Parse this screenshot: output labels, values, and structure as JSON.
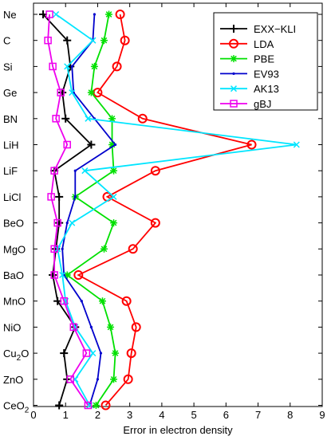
{
  "chart_data": {
    "type": "line",
    "orientation": "horizontal",
    "xlabel": "Error in electron density",
    "ylabel": "",
    "xlim": [
      0,
      9
    ],
    "xticks": [
      0,
      1,
      2,
      3,
      4,
      5,
      6,
      7,
      8,
      9
    ],
    "grid": false,
    "legend_position": "top-right",
    "categories": [
      {
        "name": "Ne",
        "sub": ""
      },
      {
        "name": "C",
        "sub": ""
      },
      {
        "name": "Si",
        "sub": ""
      },
      {
        "name": "Ge",
        "sub": ""
      },
      {
        "name": "BN",
        "sub": ""
      },
      {
        "name": "LiH",
        "sub": ""
      },
      {
        "name": "LiF",
        "sub": ""
      },
      {
        "name": "LiCl",
        "sub": ""
      },
      {
        "name": "BeO",
        "sub": ""
      },
      {
        "name": "MgO",
        "sub": ""
      },
      {
        "name": "BaO",
        "sub": ""
      },
      {
        "name": "MnO",
        "sub": ""
      },
      {
        "name": "NiO",
        "sub": ""
      },
      {
        "name": "Cu",
        "sub": "2",
        "tail": "O"
      },
      {
        "name": "ZnO",
        "sub": ""
      },
      {
        "name": "CeO",
        "sub": "2"
      }
    ],
    "series": [
      {
        "name": "EXX−KLI",
        "color": "#000000",
        "marker": "plus",
        "values": [
          0.3,
          1.05,
          1.15,
          0.9,
          1.0,
          1.8,
          0.65,
          0.8,
          0.8,
          0.7,
          0.6,
          0.75,
          1.3,
          0.95,
          1.05,
          0.8
        ]
      },
      {
        "name": "LDA",
        "color": "#ff0000",
        "marker": "circle",
        "values": [
          2.7,
          2.85,
          2.6,
          2.0,
          3.4,
          6.8,
          3.8,
          2.3,
          3.8,
          3.1,
          1.4,
          2.9,
          3.2,
          3.05,
          2.95,
          2.25
        ]
      },
      {
        "name": "PBE",
        "color": "#00e000",
        "marker": "star",
        "values": [
          2.35,
          2.2,
          1.9,
          1.8,
          2.45,
          2.45,
          2.5,
          1.3,
          2.5,
          2.2,
          1.05,
          2.15,
          2.4,
          2.55,
          2.5,
          1.95
        ]
      },
      {
        "name": "EV93",
        "color": "#0000cc",
        "marker": "dot",
        "values": [
          1.9,
          1.85,
          1.2,
          1.25,
          1.9,
          2.55,
          1.3,
          1.3,
          1.05,
          0.9,
          0.95,
          1.5,
          1.8,
          2.1,
          2.0,
          1.75
        ]
      },
      {
        "name": "AK13",
        "color": "#00e5ff",
        "marker": "x",
        "values": [
          0.7,
          1.85,
          1.05,
          1.2,
          1.7,
          8.2,
          1.6,
          2.5,
          1.2,
          0.75,
          0.9,
          1.0,
          1.3,
          1.85,
          1.3,
          1.75
        ]
      },
      {
        "name": "gBJ",
        "color": "#ee00ee",
        "marker": "square",
        "values": [
          0.5,
          0.45,
          0.6,
          0.85,
          0.7,
          1.05,
          0.65,
          0.55,
          0.75,
          0.65,
          0.65,
          0.95,
          1.25,
          1.65,
          1.15,
          1.7
        ]
      }
    ]
  }
}
